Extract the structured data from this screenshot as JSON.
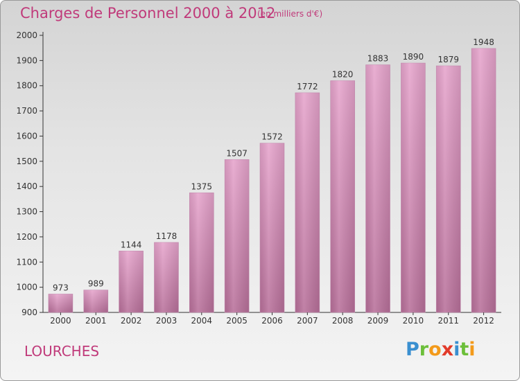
{
  "header": {
    "title": "Charges de Personnel 2000 à 2012",
    "subtitle": "(en milliers d'€)"
  },
  "footer": {
    "place": "LOURCHES",
    "logo": "Proxiti"
  },
  "colors": {
    "title": "#c03a7a",
    "bar_top": "#e6a4cc",
    "bar_bottom": "#b8709a",
    "axis": "#333333"
  },
  "chart_data": {
    "type": "bar",
    "title": "Charges de Personnel 2000 à 2012",
    "subtitle": "(en milliers d'€)",
    "categories": [
      "2000",
      "2001",
      "2002",
      "2003",
      "2004",
      "2005",
      "2006",
      "2007",
      "2008",
      "2009",
      "2010",
      "2011",
      "2012"
    ],
    "values": [
      973,
      989,
      1144,
      1178,
      1375,
      1507,
      1572,
      1772,
      1820,
      1883,
      1890,
      1879,
      1948
    ],
    "ylim": [
      900,
      2000
    ],
    "yticks": [
      900,
      1000,
      1100,
      1200,
      1300,
      1400,
      1500,
      1600,
      1700,
      1800,
      1900,
      2000
    ],
    "grid": false,
    "data_labels": true
  }
}
